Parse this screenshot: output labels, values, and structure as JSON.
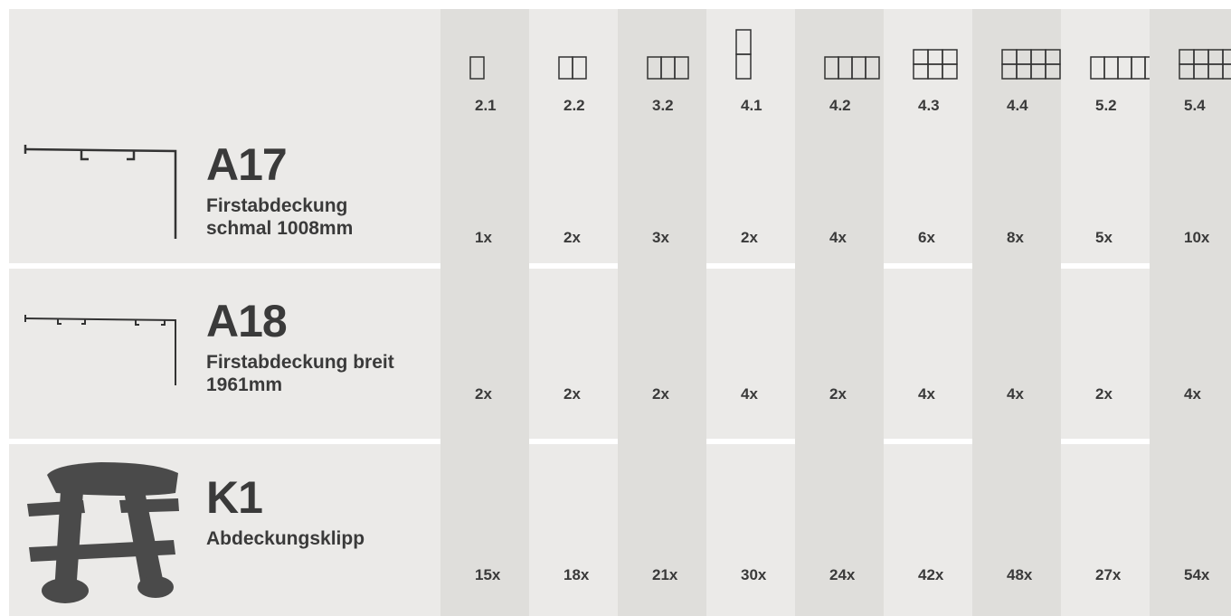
{
  "header": {
    "columns": [
      "2.1",
      "2.2",
      "3.2",
      "4.1",
      "4.2",
      "4.3",
      "4.4",
      "5.2",
      "5.4"
    ]
  },
  "rows": [
    {
      "code": "A17",
      "name_lines": [
        "Firstabdeckung",
        "schmal 1008mm"
      ],
      "quantities": [
        "1x",
        "2x",
        "3x",
        "2x",
        "4x",
        "6x",
        "8x",
        "5x",
        "10x"
      ]
    },
    {
      "code": "A18",
      "name_lines": [
        "Firstabdeckung breit",
        "1961mm"
      ],
      "quantities": [
        "2x",
        "2x",
        "2x",
        "4x",
        "2x",
        "4x",
        "4x",
        "2x",
        "4x"
      ]
    },
    {
      "code": "K1",
      "name_lines": [
        "Abdeckungsklipp"
      ],
      "quantities": [
        "15x",
        "18x",
        "21x",
        "30x",
        "24x",
        "42x",
        "48x",
        "27x",
        "54x"
      ]
    }
  ]
}
